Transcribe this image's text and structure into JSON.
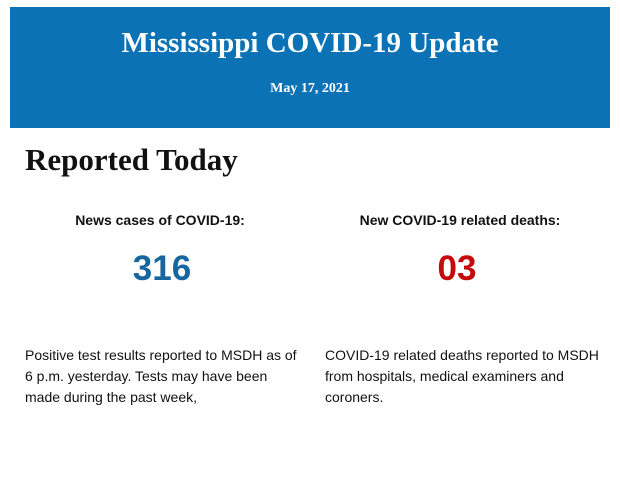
{
  "header": {
    "title": "Mississippi COVID-19 Update",
    "date": "May 17, 2021"
  },
  "section_title": "Reported Today",
  "stats": [
    {
      "label": "News cases of COVID-19:",
      "value": "316",
      "description": "Positive test results reported to MSDH as of 6 p.m. yesterday. Tests may have been made during the past week,"
    },
    {
      "label": "New COVID-19 related deaths:",
      "value": "03",
      "description": "COVID-19 related deaths reported to MSDH from hospitals, medical examiners and coroners."
    }
  ]
}
